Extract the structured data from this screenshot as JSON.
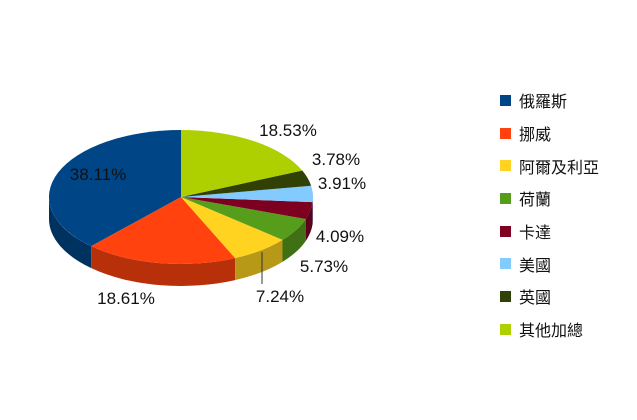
{
  "chart_data": {
    "type": "pie",
    "title": "",
    "labels": [
      "俄羅斯",
      "挪威",
      "阿爾及利亞",
      "荷蘭",
      "卡達",
      "美國",
      "英國",
      "其他加總"
    ],
    "values": [
      38.11,
      18.61,
      7.24,
      5.73,
      4.09,
      3.91,
      3.78,
      18.53
    ],
    "value_labels": [
      "38.11%",
      "18.61%",
      "7.24%",
      "5.73%",
      "4.09%",
      "3.91%",
      "3.78%",
      "18.53%"
    ],
    "colors": [
      "#004586",
      "#ff420e",
      "#ffd320",
      "#579d1c",
      "#7e0021",
      "#83caff",
      "#314004",
      "#aecf00"
    ],
    "style": "3d-tilted",
    "legend_position": "right"
  }
}
